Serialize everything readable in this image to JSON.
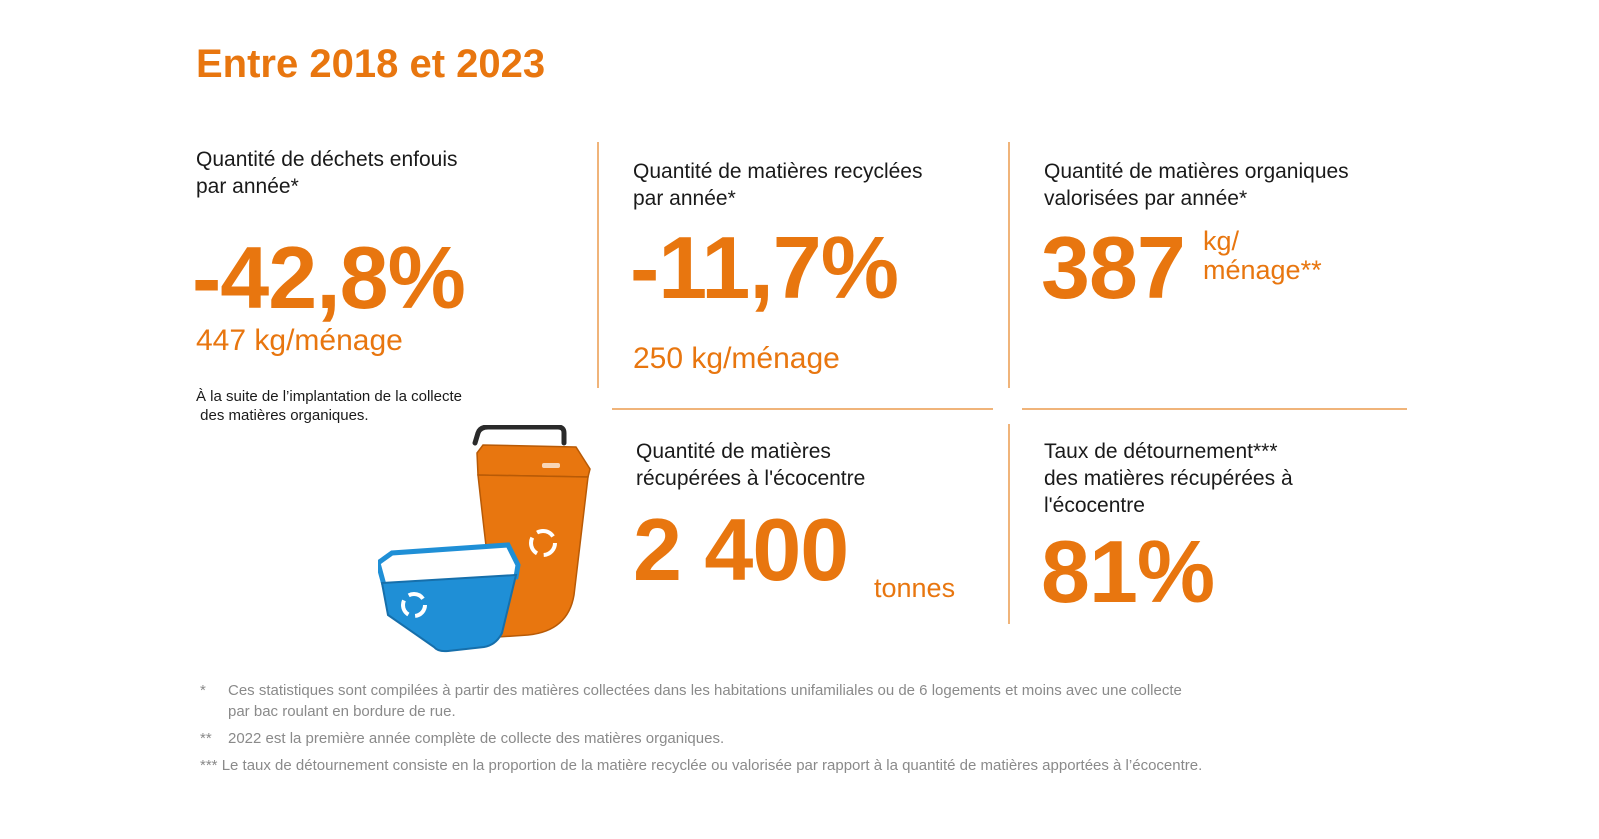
{
  "title": "Entre 2018 et 2023",
  "stats": {
    "landfill": {
      "label_line1": "Quantité de déchets enfouis",
      "label_line2": "par année*",
      "value": "-42,8%",
      "sub": "447 kg/ménage",
      "note_line1": "À la suite de l’implantation de la collecte",
      "note_line2": " des matières organiques."
    },
    "recycled": {
      "label_line1": "Quantité de matières recyclées",
      "label_line2": "par année*",
      "value": "-11,7%",
      "sub": "250 kg/ménage"
    },
    "organic": {
      "label_line1": "Quantité de matières organiques",
      "label_line2": "valorisées par année*",
      "value": "387",
      "unit_line1": "kg/",
      "unit_line2": "ménage**"
    },
    "ecocentre": {
      "label_line1": "Quantité de matières",
      "label_line2": "récupérées à l'écocentre",
      "value": "2 400",
      "unit": "tonnes"
    },
    "diversion": {
      "label_line1": "Taux de détournement***",
      "label_line2": "des matières récupérées à",
      "label_line3": "l'écocentre",
      "value": "81%"
    }
  },
  "illustration": {
    "icons": [
      "orange-organic-bin-icon",
      "blue-recycling-bin-icon",
      "recycle-symbol-icon"
    ],
    "colors": {
      "orange_bin": "#e8760f",
      "blue_bin": "#1f8fd6",
      "accent": "#e8760f"
    }
  },
  "footnotes": [
    {
      "marker": "*",
      "line1": "Ces statistiques sont compilées à partir des matières collectées dans les habitations unifamiliales ou de 6 logements et moins avec une collecte",
      "line2": "par bac roulant en bordure de rue."
    },
    {
      "marker": "**",
      "line1": "2022 est la première année complète de collecte des matières organiques."
    },
    {
      "marker": "***",
      "line1": "Le taux de détournement consiste en la proportion de la matière recyclée ou valorisée par rapport à la quantité de matières apportées à l’écocentre."
    }
  ]
}
